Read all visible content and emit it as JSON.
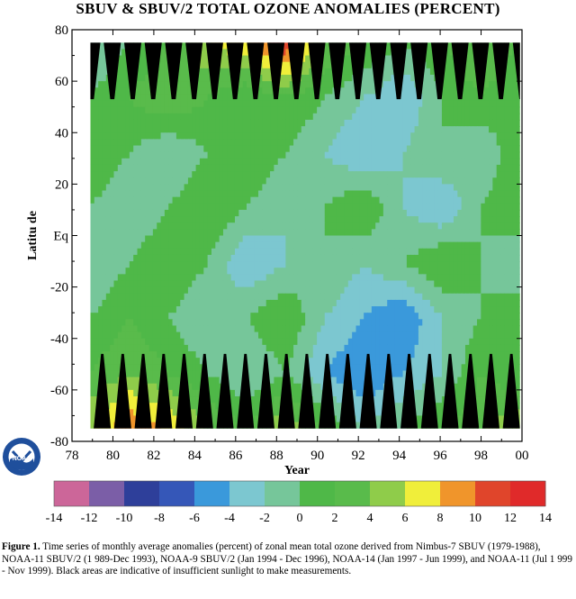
{
  "chart_data": {
    "type": "heatmap",
    "title": "SBUV & SBUV/2 TOTAL OZONE ANOMALIES (PERCENT)",
    "xlabel": "Year",
    "ylabel": "Latitu de",
    "x_ticks": [
      "78",
      "80",
      "82",
      "84",
      "86",
      "88",
      "90",
      "92",
      "94",
      "96",
      "98",
      "00"
    ],
    "y_ticks": [
      "80",
      "60",
      "40",
      "20",
      "Eq",
      "-20",
      "-40",
      "-60",
      "-80"
    ],
    "xlim": [
      1978,
      2000
    ],
    "ylim": [
      -80,
      80
    ],
    "data_extent": {
      "time": [
        1978.9,
        1999.9
      ],
      "latitude": [
        -75,
        75
      ]
    },
    "colorbar": {
      "boundaries": [
        "-14",
        "-12",
        "-10",
        "-8",
        "-6",
        "-4",
        "-2",
        "0",
        "2",
        "4",
        "6",
        "8",
        "10",
        "12",
        "14"
      ],
      "colors": [
        "#cc6699",
        "#7b5ea7",
        "#2e3f9a",
        "#3557b8",
        "#3a99db",
        "#7cc7d0",
        "#76c69a",
        "#4fb848",
        "#59bb4b",
        "#8fcc4a",
        "#f0ee3a",
        "#f0952b",
        "#e0452b",
        "#e02a2a"
      ]
    },
    "insufficient_sunlight_color": "#000000",
    "anomalies": [
      [
        -2,
        0,
        2,
        6,
        8,
        12,
        4,
        2,
        0,
        2,
        4,
        2
      ],
      [
        0,
        2,
        4,
        2,
        0,
        2,
        0,
        -2,
        -4,
        0,
        2,
        0
      ],
      [
        2,
        0,
        -2,
        0,
        2,
        0,
        -2,
        -4,
        -2,
        0,
        -2,
        2
      ],
      [
        0,
        -2,
        0,
        2,
        0,
        -2,
        0,
        2,
        -2,
        -4,
        0,
        2
      ],
      [
        -2,
        0,
        2,
        0,
        -4,
        -2,
        0,
        -2,
        0,
        2,
        0,
        -2
      ],
      [
        0,
        2,
        0,
        -2,
        0,
        2,
        -2,
        -4,
        -6,
        -2,
        0,
        2
      ],
      [
        2,
        4,
        2,
        0,
        -2,
        0,
        -4,
        -6,
        -4,
        -2,
        2,
        0
      ],
      [
        6,
        10,
        8,
        4,
        2,
        6,
        2,
        -2,
        0,
        2,
        4,
        6
      ]
    ]
  },
  "caption": {
    "lead": "Figure 1.",
    "text": " Time series of monthly average anomalies (percent) of zonal mean total ozone derived from Nimbus-7 SBUV (1979-1988), NOAA-11 SBUV/2 (1 989-Dec 1993), NOAA-9 SBUV/2 (Jan 1994 - Dec 1996), NOAA-14 (Jan 1997 - Jun 1999), and NOAA-11 (Jul 1 999 - Nov 1999).  Black areas are indicative of insufficient sunlight to make measurements."
  },
  "logo": {
    "text": "NOAA",
    "color": "#1f4f9c"
  }
}
